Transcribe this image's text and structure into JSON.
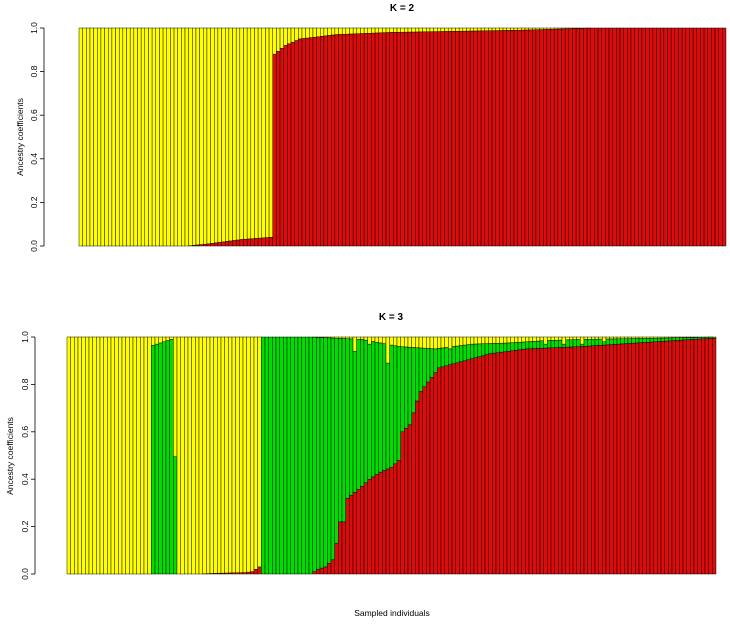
{
  "chart_data": {
    "common_xlabel": "Sampled individuals",
    "panels": [
      {
        "type": "bar",
        "stacked": true,
        "title": "K = 2",
        "xlabel": "",
        "ylabel": "Ancestry coefficients",
        "ylim": [
          0,
          1
        ],
        "yticks": [
          "0.0",
          "0.2",
          "0.4",
          "0.6",
          "0.8",
          "1.0"
        ],
        "n_individuals": 177,
        "grid": false,
        "legend": "none",
        "series": [
          {
            "color": "#dd0b0b",
            "note": "bottom component"
          },
          {
            "color": "#ffff00",
            "note": "top component"
          }
        ],
        "anchor_bottom_values": [
          [
            0,
            0
          ],
          [
            29,
            0
          ],
          [
            35,
            0.01
          ],
          [
            44,
            0.03
          ],
          [
            52,
            0.04
          ],
          [
            53,
            0.88
          ],
          [
            56,
            0.92
          ],
          [
            60,
            0.95
          ],
          [
            70,
            0.97
          ],
          [
            85,
            0.98
          ],
          [
            120,
            0.99
          ],
          [
            140,
            1.0
          ],
          [
            176,
            1.0
          ]
        ]
      },
      {
        "type": "bar",
        "stacked": true,
        "title": "K = 3",
        "xlabel": "",
        "ylabel": "Ancestry coefficients",
        "ylim": [
          0,
          1
        ],
        "yticks": [
          "0.0",
          "0.2",
          "0.4",
          "0.6",
          "0.8",
          "1.0"
        ],
        "n_individuals": 177,
        "grid": false,
        "legend": "none",
        "series": [
          {
            "color": "#dd0b0b",
            "note": "bottom component"
          },
          {
            "color": "#00dd00",
            "note": "middle component"
          },
          {
            "color": "#ffff00",
            "note": "top component"
          }
        ],
        "anchor_bottom_values": [
          [
            0,
            0
          ],
          [
            36,
            0
          ],
          [
            40,
            0.003
          ],
          [
            48,
            0.006
          ],
          [
            50,
            0.01
          ],
          [
            51,
            0.02
          ],
          [
            52,
            0.03
          ],
          [
            53,
            0
          ],
          [
            66,
            0
          ],
          [
            68,
            0.02
          ],
          [
            70,
            0.03
          ],
          [
            72,
            0.06
          ],
          [
            73,
            0.13
          ],
          [
            74,
            0.22
          ],
          [
            75,
            0.22
          ],
          [
            76,
            0.32
          ],
          [
            80,
            0.37
          ],
          [
            82,
            0.4
          ],
          [
            85,
            0.43
          ],
          [
            88,
            0.45
          ],
          [
            90,
            0.48
          ],
          [
            91,
            0.6
          ],
          [
            93,
            0.63
          ],
          [
            95,
            0.73
          ],
          [
            96,
            0.77
          ],
          [
            98,
            0.81
          ],
          [
            101,
            0.87
          ],
          [
            108,
            0.9
          ],
          [
            115,
            0.93
          ],
          [
            125,
            0.95
          ],
          [
            140,
            0.96
          ],
          [
            150,
            0.97
          ],
          [
            160,
            0.98
          ],
          [
            170,
            0.99
          ],
          [
            176,
            0.995
          ]
        ],
        "anchor_middle_values": [
          [
            0,
            0
          ],
          [
            22,
            0
          ],
          [
            23,
            0.965
          ],
          [
            26,
            0.98
          ],
          [
            28,
            0.99
          ],
          [
            30,
            0
          ],
          [
            50,
            0
          ],
          [
            52,
            0.005
          ],
          [
            53,
            1
          ],
          [
            66,
            1
          ],
          [
            80,
            0.99
          ],
          [
            90,
            0.96
          ],
          [
            100,
            0.95
          ],
          [
            110,
            0.97
          ],
          [
            120,
            0.975
          ],
          [
            130,
            0.985
          ],
          [
            140,
            0.99
          ],
          [
            160,
            0.995
          ],
          [
            176,
            1.0
          ]
        ],
        "yellow_spikes": [
          [
            78,
            0.05
          ],
          [
            82,
            0.02
          ],
          [
            87,
            0.1
          ],
          [
            90,
            0.02
          ],
          [
            94,
            0.02
          ],
          [
            96,
            0.015
          ],
          [
            99,
            0.035
          ],
          [
            104,
            0.04
          ],
          [
            106,
            0.02
          ],
          [
            110,
            0.02
          ],
          [
            122,
            0.01
          ],
          [
            130,
            0.02
          ],
          [
            135,
            0.02
          ],
          [
            140,
            0.02
          ],
          [
            146,
            0.01
          ]
        ]
      }
    ]
  }
}
